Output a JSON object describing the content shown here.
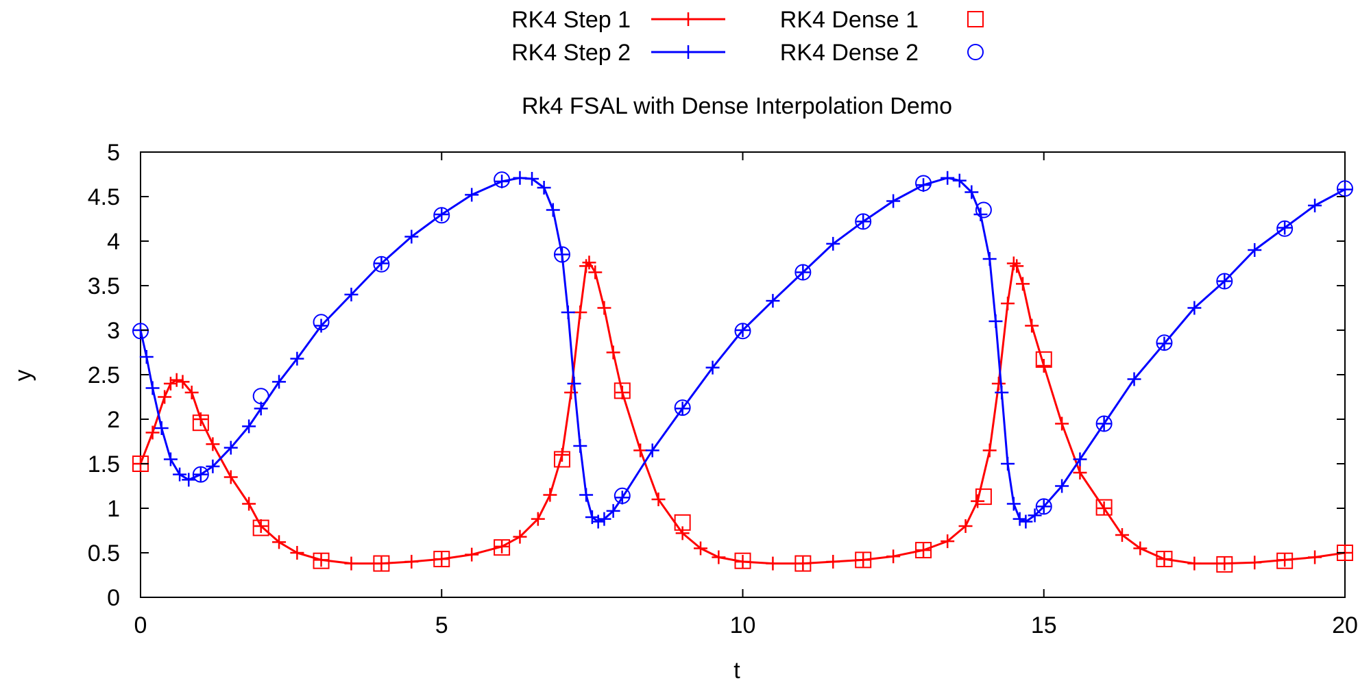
{
  "chart_data": {
    "type": "line",
    "title": "Rk4 FSAL with Dense Interpolation Demo",
    "xlabel": "t",
    "ylabel": "y",
    "xlim": [
      0,
      20
    ],
    "ylim": [
      0,
      5
    ],
    "xticks": [
      0,
      5,
      10,
      15,
      20
    ],
    "xtick_labels": [
      "0",
      "5",
      "10",
      "15",
      "20"
    ],
    "yticks": [
      0,
      0.5,
      1,
      1.5,
      2,
      2.5,
      3,
      3.5,
      4,
      4.5,
      5
    ],
    "ytick_labels": [
      "0",
      "0.5",
      "1",
      "1.5",
      "2",
      "2.5",
      "3",
      "3.5",
      "4",
      "4.5",
      "5"
    ],
    "grid": false,
    "legend_position": "top-center",
    "series": [
      {
        "name": "RK4 Step 1",
        "style": "line-plus",
        "color": "#ff0000",
        "points": [
          [
            0,
            1.5
          ],
          [
            0.2,
            1.85
          ],
          [
            0.4,
            2.25
          ],
          [
            0.5,
            2.4
          ],
          [
            0.6,
            2.44
          ],
          [
            0.7,
            2.42
          ],
          [
            0.85,
            2.3
          ],
          [
            1,
            2.0
          ],
          [
            1.2,
            1.72
          ],
          [
            1.5,
            1.35
          ],
          [
            1.8,
            1.05
          ],
          [
            2,
            0.8
          ],
          [
            2.3,
            0.62
          ],
          [
            2.6,
            0.5
          ],
          [
            3,
            0.42
          ],
          [
            3.5,
            0.38
          ],
          [
            4,
            0.38
          ],
          [
            4.5,
            0.4
          ],
          [
            5,
            0.43
          ],
          [
            5.5,
            0.48
          ],
          [
            6,
            0.57
          ],
          [
            6.3,
            0.68
          ],
          [
            6.6,
            0.88
          ],
          [
            6.8,
            1.15
          ],
          [
            7,
            1.6
          ],
          [
            7.15,
            2.3
          ],
          [
            7.3,
            3.2
          ],
          [
            7.4,
            3.72
          ],
          [
            7.45,
            3.76
          ],
          [
            7.55,
            3.65
          ],
          [
            7.7,
            3.25
          ],
          [
            7.85,
            2.75
          ],
          [
            8,
            2.3
          ],
          [
            8.3,
            1.65
          ],
          [
            8.6,
            1.1
          ],
          [
            9,
            0.72
          ],
          [
            9.3,
            0.55
          ],
          [
            9.6,
            0.45
          ],
          [
            10,
            0.4
          ],
          [
            10.5,
            0.38
          ],
          [
            11,
            0.38
          ],
          [
            11.5,
            0.4
          ],
          [
            12,
            0.42
          ],
          [
            12.5,
            0.46
          ],
          [
            13,
            0.53
          ],
          [
            13.4,
            0.63
          ],
          [
            13.7,
            0.8
          ],
          [
            13.9,
            1.08
          ],
          [
            14.1,
            1.65
          ],
          [
            14.25,
            2.4
          ],
          [
            14.4,
            3.3
          ],
          [
            14.5,
            3.75
          ],
          [
            14.55,
            3.72
          ],
          [
            14.65,
            3.52
          ],
          [
            14.8,
            3.05
          ],
          [
            15,
            2.6
          ],
          [
            15.3,
            1.95
          ],
          [
            15.6,
            1.4
          ],
          [
            16,
            1.0
          ],
          [
            16.3,
            0.7
          ],
          [
            16.6,
            0.55
          ],
          [
            17,
            0.43
          ],
          [
            17.5,
            0.38
          ],
          [
            18,
            0.38
          ],
          [
            18.5,
            0.39
          ],
          [
            19,
            0.42
          ],
          [
            19.5,
            0.45
          ],
          [
            20,
            0.5
          ]
        ]
      },
      {
        "name": "RK4 Step 2",
        "style": "line-plus",
        "color": "#0000ff",
        "points": [
          [
            0,
            3.0
          ],
          [
            0.1,
            2.7
          ],
          [
            0.2,
            2.35
          ],
          [
            0.35,
            1.9
          ],
          [
            0.5,
            1.55
          ],
          [
            0.65,
            1.38
          ],
          [
            0.8,
            1.32
          ],
          [
            1,
            1.38
          ],
          [
            1.2,
            1.47
          ],
          [
            1.5,
            1.68
          ],
          [
            1.8,
            1.92
          ],
          [
            2,
            2.12
          ],
          [
            2.3,
            2.42
          ],
          [
            2.6,
            2.68
          ],
          [
            3,
            3.05
          ],
          [
            3.5,
            3.4
          ],
          [
            4,
            3.75
          ],
          [
            4.5,
            4.05
          ],
          [
            5,
            4.3
          ],
          [
            5.5,
            4.52
          ],
          [
            6,
            4.67
          ],
          [
            6.3,
            4.71
          ],
          [
            6.5,
            4.7
          ],
          [
            6.7,
            4.6
          ],
          [
            6.85,
            4.35
          ],
          [
            7,
            3.85
          ],
          [
            7.1,
            3.2
          ],
          [
            7.2,
            2.4
          ],
          [
            7.3,
            1.7
          ],
          [
            7.4,
            1.15
          ],
          [
            7.5,
            0.9
          ],
          [
            7.6,
            0.85
          ],
          [
            7.7,
            0.88
          ],
          [
            7.85,
            0.97
          ],
          [
            8,
            1.12
          ],
          [
            8.5,
            1.65
          ],
          [
            9,
            2.12
          ],
          [
            9.5,
            2.58
          ],
          [
            10,
            3.0
          ],
          [
            10.5,
            3.33
          ],
          [
            11,
            3.65
          ],
          [
            11.5,
            3.97
          ],
          [
            12,
            4.22
          ],
          [
            12.5,
            4.45
          ],
          [
            13,
            4.63
          ],
          [
            13.4,
            4.71
          ],
          [
            13.6,
            4.68
          ],
          [
            13.8,
            4.55
          ],
          [
            13.95,
            4.3
          ],
          [
            14.1,
            3.8
          ],
          [
            14.2,
            3.1
          ],
          [
            14.3,
            2.3
          ],
          [
            14.4,
            1.5
          ],
          [
            14.5,
            1.05
          ],
          [
            14.6,
            0.88
          ],
          [
            14.7,
            0.85
          ],
          [
            14.85,
            0.92
          ],
          [
            15,
            1.02
          ],
          [
            15.3,
            1.25
          ],
          [
            15.6,
            1.55
          ],
          [
            16,
            1.95
          ],
          [
            16.5,
            2.45
          ],
          [
            17,
            2.85
          ],
          [
            17.5,
            3.25
          ],
          [
            18,
            3.55
          ],
          [
            18.5,
            3.9
          ],
          [
            19,
            4.15
          ],
          [
            19.5,
            4.4
          ],
          [
            20,
            4.58
          ]
        ]
      },
      {
        "name": "RK4 Dense 1",
        "style": "marker-square",
        "color": "#ff0000",
        "points": [
          [
            0,
            1.5
          ],
          [
            1,
            1.96
          ],
          [
            2,
            0.78
          ],
          [
            3,
            0.41
          ],
          [
            4,
            0.38
          ],
          [
            5,
            0.43
          ],
          [
            6,
            0.56
          ],
          [
            7,
            1.55
          ],
          [
            8,
            2.32
          ],
          [
            9,
            0.84
          ],
          [
            10,
            0.41
          ],
          [
            11,
            0.38
          ],
          [
            12,
            0.42
          ],
          [
            13,
            0.53
          ],
          [
            14,
            1.13
          ],
          [
            15,
            2.67
          ],
          [
            16,
            1.01
          ],
          [
            17,
            0.43
          ],
          [
            18,
            0.37
          ],
          [
            19,
            0.41
          ],
          [
            20,
            0.5
          ]
        ]
      },
      {
        "name": "RK4 Dense 2",
        "style": "marker-circle",
        "color": "#0000ff",
        "points": [
          [
            0,
            2.99
          ],
          [
            1,
            1.38
          ],
          [
            2,
            2.26
          ],
          [
            3,
            3.09
          ],
          [
            4,
            3.74
          ],
          [
            5,
            4.29
          ],
          [
            6,
            4.69
          ],
          [
            7,
            3.85
          ],
          [
            8,
            1.14
          ],
          [
            9,
            2.13
          ],
          [
            10,
            2.99
          ],
          [
            11,
            3.65
          ],
          [
            12,
            4.22
          ],
          [
            13,
            4.65
          ],
          [
            14,
            4.35
          ],
          [
            15,
            1.02
          ],
          [
            16,
            1.95
          ],
          [
            17,
            2.86
          ],
          [
            18,
            3.55
          ],
          [
            19,
            4.14
          ],
          [
            20,
            4.59
          ]
        ]
      }
    ]
  }
}
